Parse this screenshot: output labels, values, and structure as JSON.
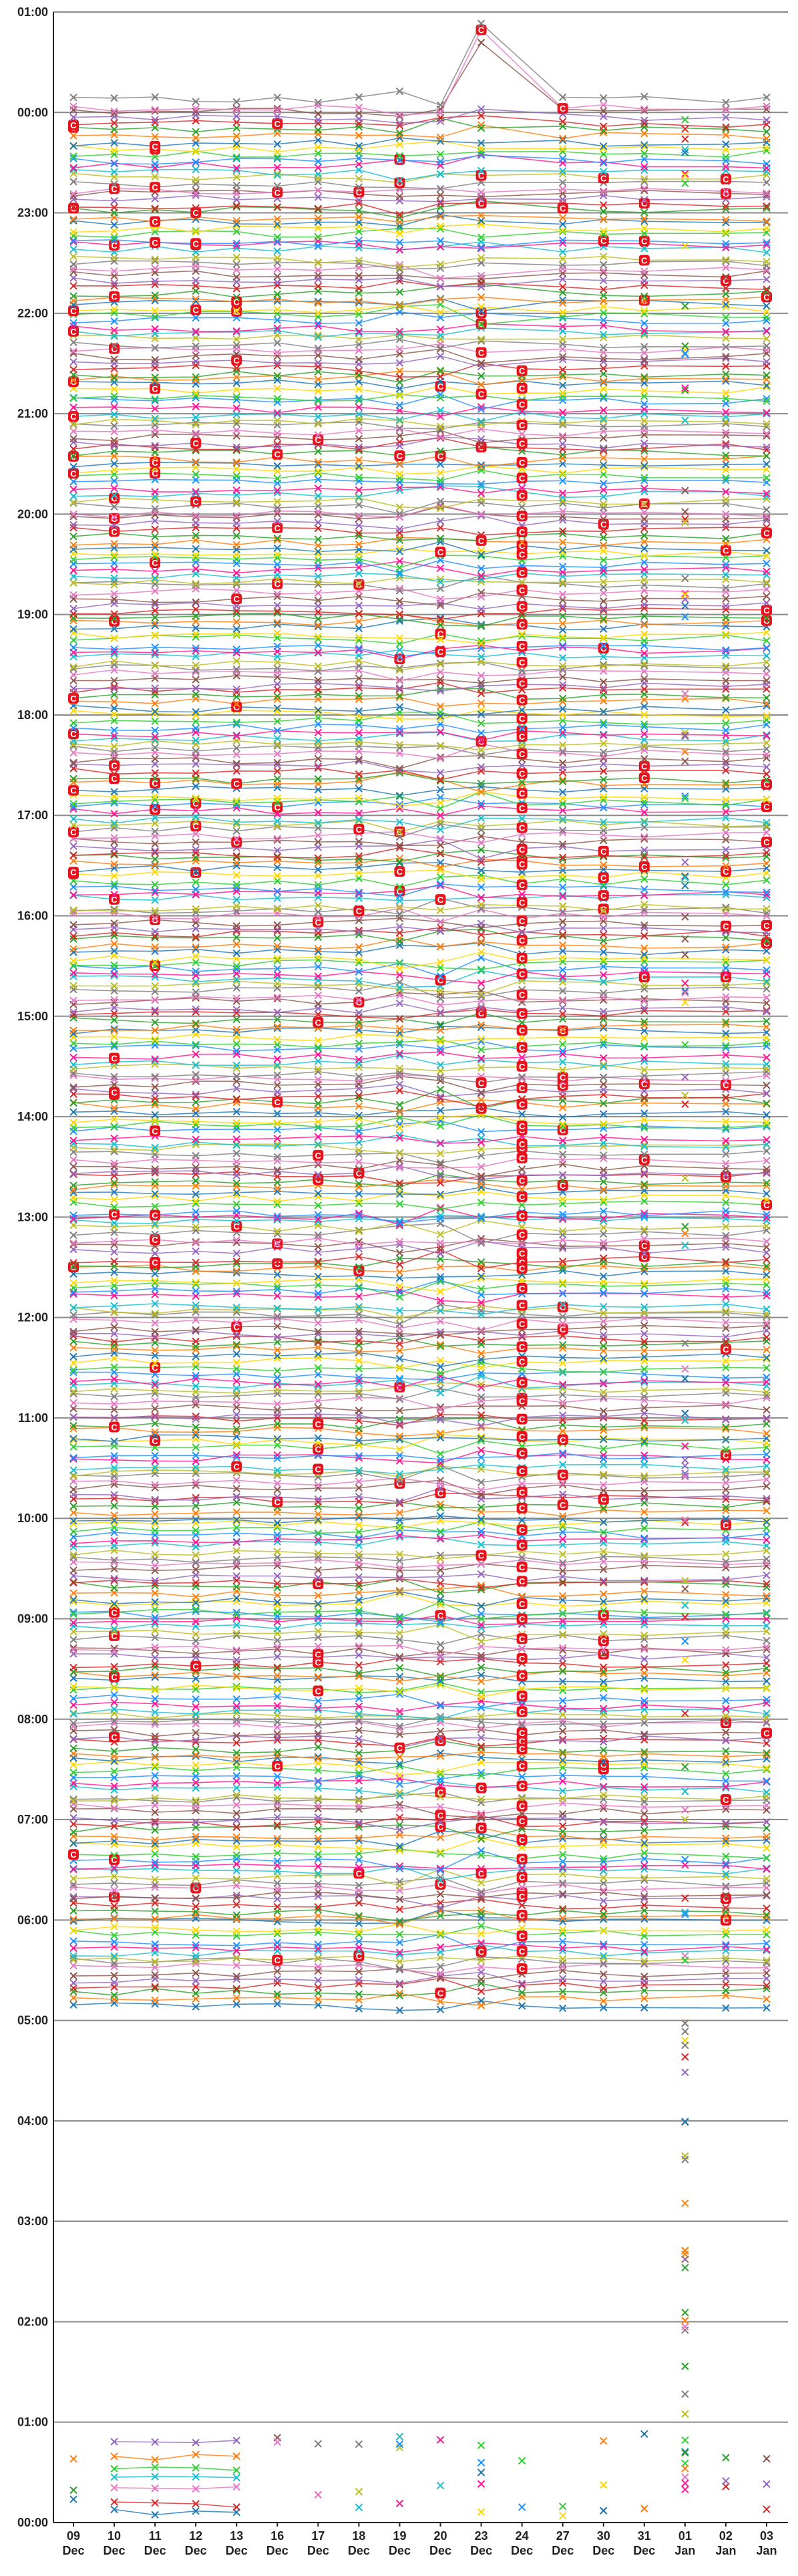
{
  "chart_data": {
    "type": "line",
    "title": "",
    "xlabel": "",
    "ylabel": "",
    "y_axis": {
      "unit": "time-of-day",
      "range_minutes": [
        0,
        1500
      ],
      "tick_labels": [
        "00:00",
        "01:00",
        "02:00",
        "03:00",
        "04:00",
        "05:00",
        "06:00",
        "07:00",
        "08:00",
        "09:00",
        "10:00",
        "11:00",
        "12:00",
        "13:00",
        "14:00",
        "15:00",
        "16:00",
        "17:00",
        "18:00",
        "19:00",
        "20:00",
        "21:00",
        "22:00",
        "23:00",
        "00:00",
        "01:00"
      ],
      "direction": "increasing upward, wraps past midnight at top",
      "grid": true
    },
    "x_axis": {
      "categories": [
        {
          "day": "09",
          "month": "Dec"
        },
        {
          "day": "10",
          "month": "Dec"
        },
        {
          "day": "11",
          "month": "Dec"
        },
        {
          "day": "12",
          "month": "Dec"
        },
        {
          "day": "13",
          "month": "Dec"
        },
        {
          "day": "16",
          "month": "Dec"
        },
        {
          "day": "17",
          "month": "Dec"
        },
        {
          "day": "18",
          "month": "Dec"
        },
        {
          "day": "19",
          "month": "Dec"
        },
        {
          "day": "20",
          "month": "Dec"
        },
        {
          "day": "23",
          "month": "Dec"
        },
        {
          "day": "24",
          "month": "Dec"
        },
        {
          "day": "27",
          "month": "Dec"
        },
        {
          "day": "30",
          "month": "Dec"
        },
        {
          "day": "31",
          "month": "Dec"
        },
        {
          "day": "01",
          "month": "Jan"
        },
        {
          "day": "02",
          "month": "Jan"
        },
        {
          "day": "03",
          "month": "Jan"
        }
      ]
    },
    "marker_legend": {
      "x": "observed service time",
      "C": "cancelled service"
    },
    "series_count_note": "hundreds of individual scheduled services, one colored line each",
    "palette": [
      "#1f77b4",
      "#ff7f0e",
      "#2ca02c",
      "#d62728",
      "#9467bd",
      "#8c564b",
      "#e377c2",
      "#7f7f7f",
      "#bcbd22",
      "#17becf",
      "#ff1493",
      "#1e90ff",
      "#32cd32",
      "#ffd700"
    ],
    "cancel_label": "C"
  }
}
